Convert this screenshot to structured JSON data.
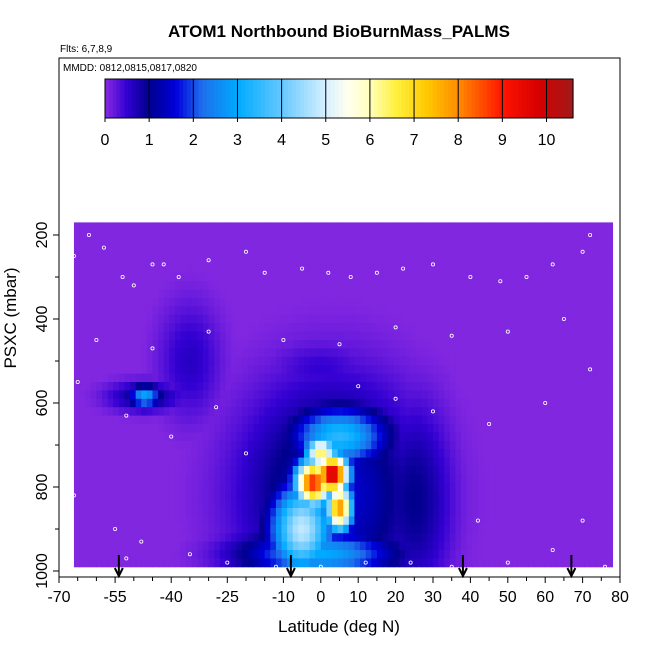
{
  "chart_data": {
    "type": "heatmap",
    "title": "ATOM1 Northbound BioBurnMass_PALMS",
    "flights_note": "Flts: 6,7,8,9",
    "dates_note": "MMDD: 0812,0815,0817,0820",
    "xlabel": "Latitude (deg N)",
    "ylabel": "PSXC (mbar)",
    "xlim": [
      -70,
      80
    ],
    "ylim": [
      1000,
      150
    ],
    "y_reversed": true,
    "x_tick_values": [
      -70,
      -55,
      -40,
      -25,
      -10,
      0,
      10,
      20,
      30,
      40,
      50,
      60,
      70,
      80
    ],
    "x_tick_labels": [
      "-70",
      "-55",
      "-40",
      "-25",
      "-10",
      "0",
      "10",
      "20",
      "30",
      "40",
      "50",
      "60",
      "70",
      "80"
    ],
    "y_ticks": [
      200,
      400,
      600,
      800,
      1000
    ],
    "colorbar": {
      "min": 0,
      "max": 10.6,
      "ticks": [
        0,
        1,
        2,
        3,
        4,
        5,
        6,
        7,
        8,
        9,
        10
      ]
    },
    "background_value": 0.05,
    "blobs": [
      {
        "lat": 3,
        "p": 770,
        "slat": 3.2,
        "sp": 35,
        "v": 10.2
      },
      {
        "lat": -2,
        "p": 790,
        "slat": 3.5,
        "sp": 40,
        "v": 9.0
      },
      {
        "lat": 5,
        "p": 850,
        "slat": 2.5,
        "sp": 40,
        "v": 8.0
      },
      {
        "lat": 0,
        "p": 720,
        "slat": 3,
        "sp": 30,
        "v": 6.5
      },
      {
        "lat": 5,
        "p": 680,
        "slat": 9,
        "sp": 50,
        "v": 3.4
      },
      {
        "lat": -5,
        "p": 900,
        "slat": 6,
        "sp": 80,
        "v": 4.8
      },
      {
        "lat": 0,
        "p": 960,
        "slat": 14,
        "sp": 40,
        "v": 3.0
      },
      {
        "lat": 3,
        "p": 820,
        "slat": 16,
        "sp": 180,
        "v": 1.6
      },
      {
        "lat": 25,
        "p": 830,
        "slat": 7,
        "sp": 160,
        "v": 1.0
      },
      {
        "lat": -47,
        "p": 585,
        "slat": 3,
        "sp": 18,
        "v": 3.0
      },
      {
        "lat": -47,
        "p": 585,
        "slat": 7,
        "sp": 25,
        "v": 1.0
      },
      {
        "lat": -35,
        "p": 500,
        "slat": 6,
        "sp": 100,
        "v": 0.6
      },
      {
        "lat": 0,
        "p": 520,
        "slat": 10,
        "sp": 50,
        "v": 0.5
      }
    ],
    "arrows_lat": [
      -54,
      -8,
      38,
      67
    ],
    "measurement_points": [
      [
        -67,
        210
      ],
      [
        -66,
        250
      ],
      [
        -62,
        200
      ],
      [
        -58,
        230
      ],
      [
        -53,
        300
      ],
      [
        -50,
        320
      ],
      [
        -45,
        270
      ],
      [
        -42,
        270
      ],
      [
        -38,
        300
      ],
      [
        -30,
        260
      ],
      [
        -20,
        240
      ],
      [
        -15,
        290
      ],
      [
        -5,
        280
      ],
      [
        2,
        290
      ],
      [
        8,
        300
      ],
      [
        15,
        290
      ],
      [
        22,
        280
      ],
      [
        30,
        270
      ],
      [
        40,
        300
      ],
      [
        48,
        310
      ],
      [
        55,
        300
      ],
      [
        62,
        270
      ],
      [
        70,
        240
      ],
      [
        72,
        200
      ],
      [
        -60,
        450
      ],
      [
        -45,
        470
      ],
      [
        -30,
        430
      ],
      [
        -10,
        450
      ],
      [
        5,
        460
      ],
      [
        20,
        420
      ],
      [
        35,
        440
      ],
      [
        50,
        430
      ],
      [
        65,
        400
      ],
      [
        -65,
        550
      ],
      [
        -52,
        630
      ],
      [
        -40,
        680
      ],
      [
        -28,
        610
      ],
      [
        -20,
        720
      ],
      [
        10,
        560
      ],
      [
        20,
        590
      ],
      [
        30,
        620
      ],
      [
        45,
        650
      ],
      [
        60,
        600
      ],
      [
        72,
        520
      ],
      [
        -66,
        820
      ],
      [
        -55,
        900
      ],
      [
        -48,
        930
      ],
      [
        -35,
        960
      ],
      [
        -25,
        980
      ],
      [
        -12,
        990
      ],
      [
        0,
        990
      ],
      [
        12,
        980
      ],
      [
        24,
        980
      ],
      [
        35,
        990
      ],
      [
        50,
        980
      ],
      [
        62,
        950
      ],
      [
        70,
        880
      ],
      [
        76,
        990
      ],
      [
        -52,
        970
      ],
      [
        42,
        880
      ]
    ]
  }
}
